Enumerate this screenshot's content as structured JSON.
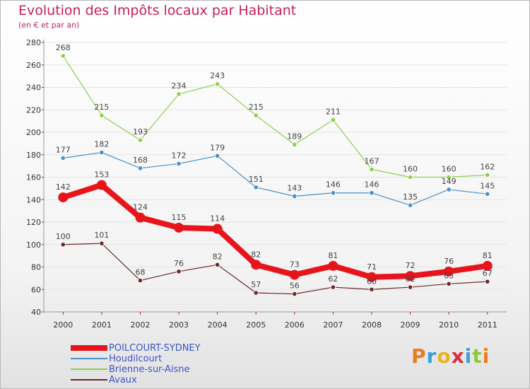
{
  "title": "Evolution des Impôts locaux par Habitant",
  "subtitle": "(en € et par an)",
  "logo_text": "Proxiti",
  "chart_data": {
    "type": "line",
    "title": "Evolution des Impôts locaux par Habitant",
    "subtitle": "(en € et par an)",
    "xlabel": "",
    "ylabel": "",
    "ylim": [
      40,
      280
    ],
    "yticks": [
      "40",
      "60",
      "80",
      "100",
      "120",
      "140",
      "160",
      "180",
      "200",
      "220",
      "240",
      "260",
      "280"
    ],
    "categories": [
      "2000",
      "2001",
      "2002",
      "2003",
      "2004",
      "2005",
      "2006",
      "2007",
      "2008",
      "2009",
      "2010",
      "2011"
    ],
    "grid": true,
    "legend_position": "bottom-left",
    "series": [
      {
        "name": "POILCOURT-SYDNEY",
        "color": "#e8141c",
        "values": [
          142,
          153,
          124,
          115,
          114,
          82,
          73,
          81,
          71,
          72,
          76,
          81
        ]
      },
      {
        "name": "Houdilcourt",
        "color": "#4a90c8",
        "values": [
          177,
          182,
          168,
          172,
          179,
          151,
          143,
          146,
          146,
          135,
          149,
          145
        ]
      },
      {
        "name": "Brienne-sur-Aisne",
        "color": "#8cd04a",
        "values": [
          268,
          215,
          193,
          234,
          243,
          215,
          189,
          211,
          167,
          160,
          160,
          162
        ]
      },
      {
        "name": "Avaux",
        "color": "#6a2a2a",
        "values": [
          100,
          101,
          68,
          76,
          82,
          57,
          56,
          62,
          60,
          62,
          65,
          67
        ]
      }
    ]
  }
}
